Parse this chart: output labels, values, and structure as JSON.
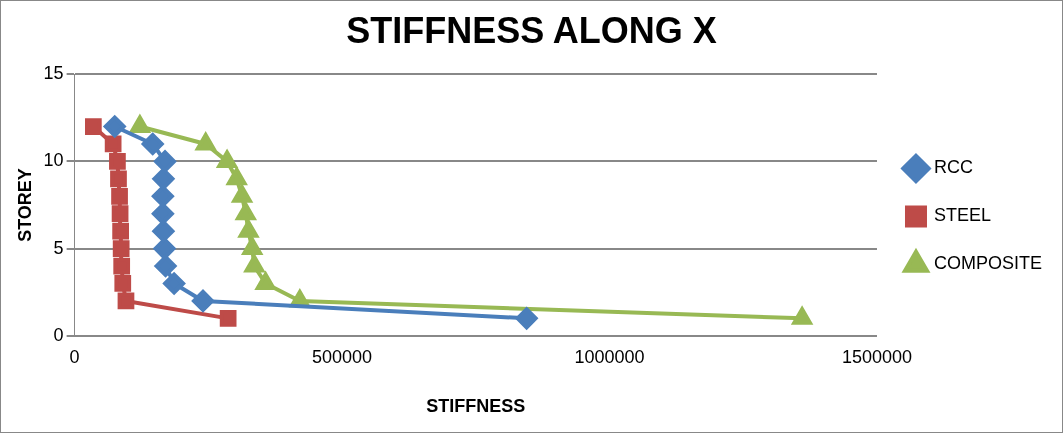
{
  "chart_data": {
    "type": "line",
    "title": "STIFFNESS ALONG X",
    "xlabel": "STIFFNESS",
    "ylabel": "STOREY",
    "xlim": [
      0,
      1500000
    ],
    "xticks": [
      0,
      500000,
      1000000,
      1500000
    ],
    "ylim": [
      0,
      15
    ],
    "yticks": [
      0,
      5,
      10,
      15
    ],
    "grid": "y",
    "legend": "right",
    "series": [
      {
        "name": "RCC",
        "color": "#4a7ebb",
        "marker": "diamond",
        "x": [
          845000,
          240000,
          186000,
          170000,
          168000,
          166000,
          165000,
          165000,
          166000,
          169000,
          146000,
          75000
        ],
        "values": [
          1,
          2,
          3,
          4,
          5,
          6,
          7,
          8,
          9,
          10,
          11,
          12
        ]
      },
      {
        "name": "STEEL",
        "color": "#be4b48",
        "marker": "square",
        "x": [
          287000,
          96000,
          90000,
          88000,
          87000,
          86000,
          85000,
          84000,
          82000,
          80000,
          72000,
          35000
        ],
        "values": [
          1,
          2,
          3,
          4,
          5,
          6,
          7,
          8,
          9,
          10,
          11,
          12
        ]
      },
      {
        "name": "COMPOSITE",
        "color": "#98b954",
        "marker": "triangle",
        "x": [
          1360000,
          421000,
          357000,
          336000,
          332000,
          325000,
          320000,
          313000,
          303000,
          285000,
          245000,
          122000
        ],
        "values": [
          1,
          2,
          3,
          4,
          5,
          6,
          7,
          8,
          9,
          10,
          11,
          12
        ]
      }
    ]
  }
}
